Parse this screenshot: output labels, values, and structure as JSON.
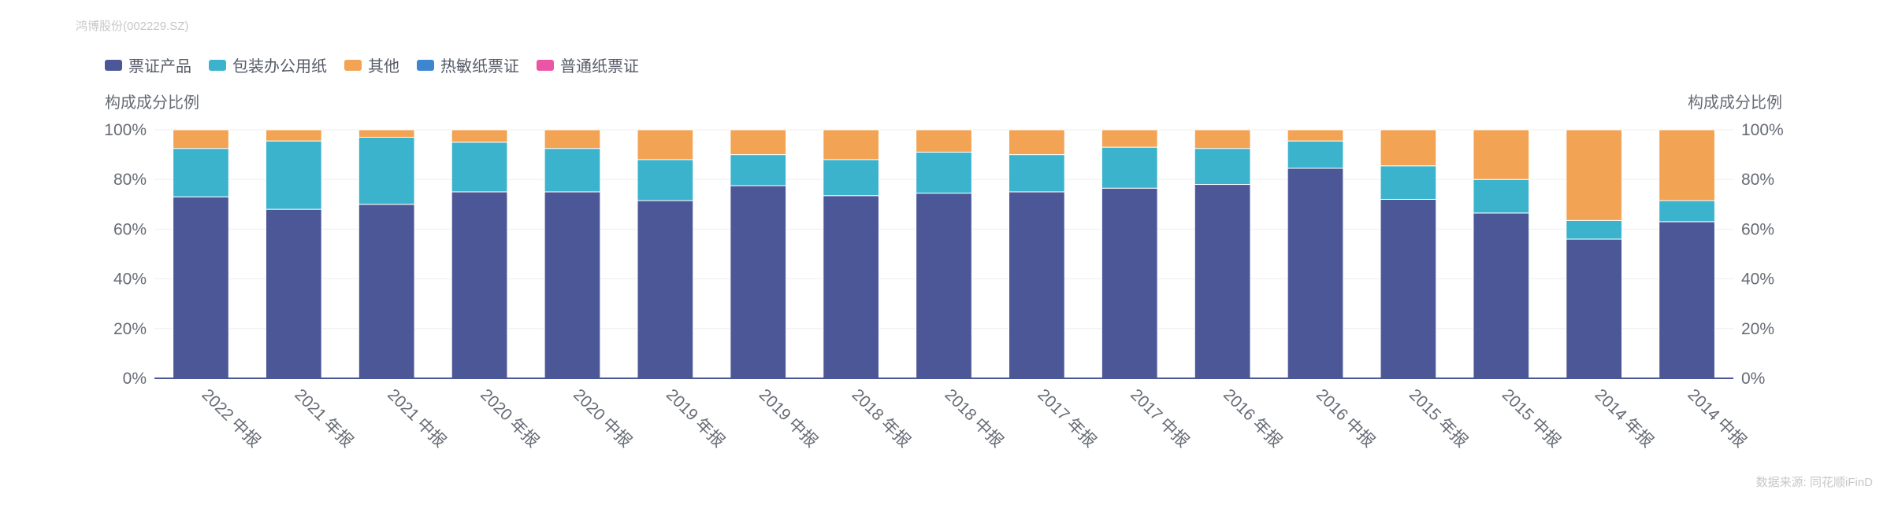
{
  "source_title": "鸿博股份(002229.SZ)",
  "footer": "数据来源: 同花顺iFinD",
  "colors": {
    "票证产品": "#4c5797",
    "包装办公用纸": "#3bb3cc",
    "其他": "#f2a353",
    "热敏纸票证": "#3e86cf",
    "普通纸票证": "#ea56a5"
  },
  "chart_data": {
    "type": "bar",
    "stacked": true,
    "categories": [
      "2022 中报",
      "2021 年报",
      "2021 中报",
      "2020 年报",
      "2020 中报",
      "2019 年报",
      "2019 中报",
      "2018 年报",
      "2018 中报",
      "2017 年报",
      "2017 中报",
      "2016 年报",
      "2016 中报",
      "2015 年报",
      "2015 中报",
      "2014 年报",
      "2014 中报"
    ],
    "series": [
      {
        "name": "票证产品",
        "values": [
          73,
          68,
          70,
          75,
          75,
          71.5,
          77.5,
          73.5,
          74.5,
          75,
          76.5,
          78,
          84.5,
          72,
          66.5,
          56,
          63
        ]
      },
      {
        "name": "包装办公用纸",
        "values": [
          19.5,
          27.5,
          27,
          20,
          17.5,
          16.5,
          12.5,
          14.5,
          16.5,
          15,
          16.5,
          14.5,
          11,
          13.5,
          13.5,
          7.5,
          8.5
        ]
      },
      {
        "name": "其他",
        "values": [
          7.5,
          4.5,
          3,
          5,
          7.5,
          12,
          10,
          12,
          9,
          10,
          7,
          7.5,
          4.5,
          14.5,
          20,
          36.5,
          28.5
        ]
      },
      {
        "name": "热敏纸票证",
        "values": [
          0,
          0,
          0,
          0,
          0,
          0,
          0,
          0,
          0,
          0,
          0,
          0,
          0,
          0,
          0,
          0,
          0
        ]
      },
      {
        "name": "普通纸票证",
        "values": [
          0,
          0,
          0,
          0,
          0,
          0,
          0,
          0,
          0,
          0,
          0,
          0,
          0,
          0,
          0,
          0,
          0
        ]
      }
    ],
    "ylabel_left": "构成成分比例",
    "ylabel_right": "构成成分比例",
    "ylim": [
      0,
      100
    ],
    "yticks": [
      "0%",
      "20%",
      "40%",
      "60%",
      "80%",
      "100%"
    ],
    "legend_position": "top-left",
    "grid": true
  }
}
